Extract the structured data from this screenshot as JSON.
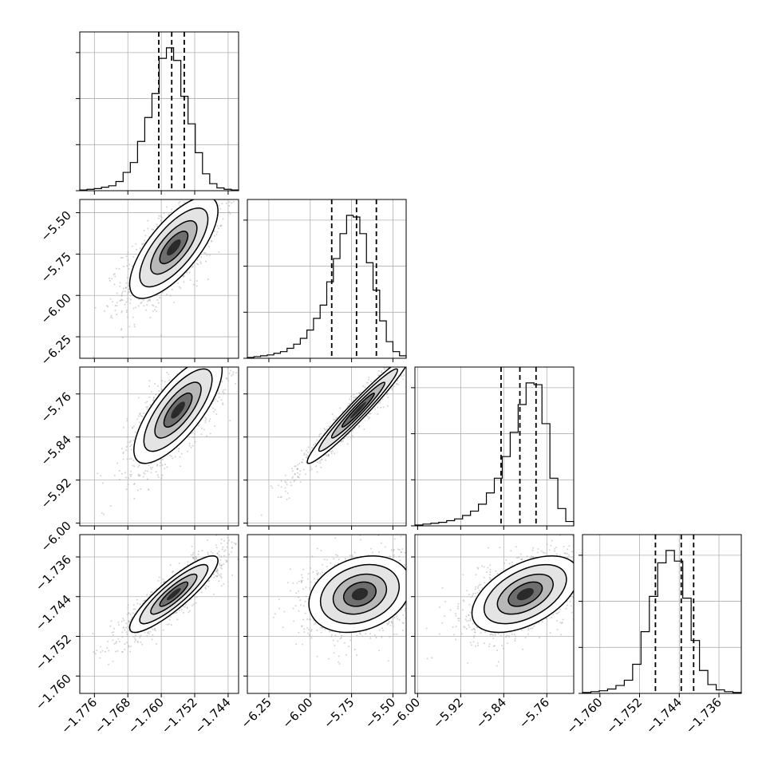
{
  "chart_data": {
    "type": "corner",
    "title": "",
    "n_params": 4,
    "grid": true,
    "style": {
      "contour_color": "#000000",
      "point_color": "#a8a8a8",
      "grid_color": "#b0b0b0",
      "hist_color": "#000000",
      "quantile_line_style": "dashed"
    },
    "axes": [
      {
        "label": "",
        "range": [
          -1.7795,
          -1.7415
        ],
        "ticks": [
          -1.776,
          -1.768,
          -1.76,
          -1.752,
          -1.744
        ],
        "tick_labels": [
          "−1.776",
          "−1.768",
          "−1.760",
          "−1.752",
          "−1.744"
        ]
      },
      {
        "label": "",
        "range": [
          -6.38,
          -5.42
        ],
        "ticks": [
          -6.25,
          -6.0,
          -5.75,
          -5.5
        ],
        "tick_labels": [
          "−6.25",
          "−6.00",
          "−5.75",
          "−5.50"
        ]
      },
      {
        "label": "",
        "range": [
          -6.005,
          -5.71
        ],
        "ticks": [
          -6.0,
          -5.92,
          -5.84,
          -5.76
        ],
        "tick_labels": [
          "−6.00",
          "−5.92",
          "−5.84",
          "−5.76"
        ]
      },
      {
        "label": "",
        "range": [
          -1.7635,
          -1.7315
        ],
        "ticks": [
          -1.76,
          -1.752,
          -1.744,
          -1.736
        ],
        "tick_labels": [
          "−1.760",
          "−1.752",
          "−1.744",
          "−1.736"
        ]
      }
    ],
    "diagonal_histograms": [
      {
        "quantiles": [
          -1.7606,
          -1.7575,
          -1.7545
        ],
        "bin_edges_range": [
          -1.7795,
          -1.7415
        ],
        "counts": [
          1,
          2,
          3,
          5,
          7,
          13,
          26,
          40,
          70,
          104,
          138,
          188,
          203,
          185,
          134,
          95,
          54,
          24,
          10,
          4,
          2,
          1
        ]
      },
      {
        "quantiles": [
          -5.87,
          -5.72,
          -5.6
        ],
        "bin_edges_range": [
          -6.38,
          -5.42
        ],
        "counts": [
          1,
          2,
          3,
          4,
          6,
          8,
          12,
          17,
          24,
          34,
          48,
          64,
          92,
          120,
          150,
          172,
          170,
          150,
          115,
          82,
          45,
          20,
          8,
          3
        ]
      },
      {
        "quantiles": [
          -5.845,
          -5.81,
          -5.78
        ],
        "bin_edges_range": [
          -6.005,
          -5.71
        ],
        "counts": [
          1,
          2,
          3,
          4,
          6,
          8,
          12,
          17,
          25,
          38,
          55,
          80,
          108,
          140,
          165,
          163,
          118,
          55,
          20,
          5
        ]
      },
      {
        "quantiles": [
          -1.7488,
          -1.7436,
          -1.7411
        ],
        "bin_edges_range": [
          -1.7635,
          -1.7315
        ],
        "counts": [
          1,
          2,
          3,
          5,
          9,
          15,
          33,
          70,
          110,
          148,
          162,
          150,
          108,
          60,
          26,
          10,
          4,
          2,
          1
        ]
      }
    ],
    "pairs": [
      {
        "row": 1,
        "col": 0,
        "center": [
          -1.757,
          -5.71
        ],
        "sigma": [
          0.0048,
          0.14
        ],
        "correlation": 0.72
      },
      {
        "row": 2,
        "col": 0,
        "center": [
          -1.756,
          -5.79
        ],
        "sigma": [
          0.0048,
          0.045
        ],
        "correlation": 0.75
      },
      {
        "row": 2,
        "col": 1,
        "center": [
          -5.71,
          -5.79
        ],
        "sigma": [
          0.14,
          0.045
        ],
        "correlation": 0.97
      },
      {
        "row": 3,
        "col": 0,
        "center": [
          -1.757,
          -1.7435
        ],
        "sigma": [
          0.0048,
          0.0035
        ],
        "correlation": 0.88
      },
      {
        "row": 3,
        "col": 1,
        "center": [
          -5.7,
          -1.7435
        ],
        "sigma": [
          0.14,
          0.0035
        ],
        "correlation": 0.25
      },
      {
        "row": 3,
        "col": 2,
        "center": [
          -5.8,
          -1.7435
        ],
        "sigma": [
          0.045,
          0.0035
        ],
        "correlation": 0.5
      }
    ]
  }
}
